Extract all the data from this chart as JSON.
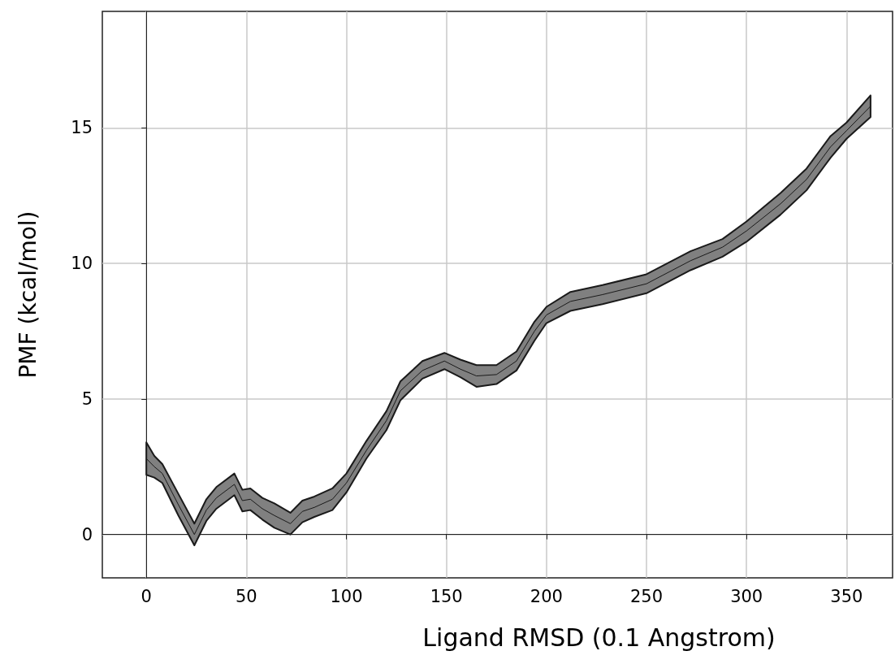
{
  "chart_data": {
    "type": "line",
    "xlabel": "Ligand RMSD (0.1 Angstrom)",
    "ylabel": "PMF (kcal/mol)",
    "x": [
      0,
      4,
      8,
      16,
      24,
      30,
      35,
      44,
      48,
      52,
      58,
      64,
      72,
      78,
      84,
      93,
      100,
      110,
      120,
      127,
      138,
      149,
      157,
      165,
      175,
      185,
      194,
      200,
      212,
      228,
      250,
      272,
      288,
      300,
      317,
      330,
      342,
      350,
      362
    ],
    "series": [
      {
        "color": "#1a1a1a",
        "values": [
          2.8,
          2.5,
          2.25,
          1.1,
          0.0,
          0.9,
          1.35,
          1.85,
          1.25,
          1.3,
          0.95,
          0.7,
          0.4,
          0.85,
          1.0,
          1.3,
          1.9,
          3.1,
          4.2,
          5.3,
          6.05,
          6.4,
          6.1,
          5.85,
          5.9,
          6.4,
          7.5,
          8.1,
          8.6,
          8.85,
          9.25,
          10.1,
          10.6,
          11.2,
          12.2,
          13.1,
          14.3,
          14.9,
          15.8
        ],
        "lower": [
          2.2,
          2.1,
          1.9,
          0.7,
          -0.4,
          0.5,
          0.95,
          1.45,
          0.85,
          0.9,
          0.55,
          0.25,
          0.0,
          0.45,
          0.65,
          0.9,
          1.55,
          2.8,
          3.85,
          4.95,
          5.75,
          6.1,
          5.8,
          5.45,
          5.55,
          6.05,
          7.15,
          7.8,
          8.25,
          8.5,
          8.9,
          9.75,
          10.25,
          10.8,
          11.8,
          12.7,
          13.9,
          14.6,
          15.4
        ],
        "upper": [
          3.4,
          2.9,
          2.6,
          1.5,
          0.4,
          1.3,
          1.75,
          2.25,
          1.65,
          1.7,
          1.35,
          1.15,
          0.8,
          1.25,
          1.4,
          1.7,
          2.25,
          3.45,
          4.55,
          5.65,
          6.4,
          6.7,
          6.45,
          6.25,
          6.25,
          6.75,
          7.85,
          8.4,
          8.95,
          9.2,
          9.6,
          10.45,
          10.9,
          11.55,
          12.6,
          13.5,
          14.7,
          15.2,
          16.2
        ]
      }
    ],
    "xlim": [
      -22,
      373
    ],
    "xticks": [
      0,
      50,
      100,
      150,
      200,
      250,
      300,
      350
    ],
    "ylim": [
      -1.6,
      19.3
    ],
    "yticks": [
      0,
      5,
      10,
      15
    ],
    "grid": true
  }
}
